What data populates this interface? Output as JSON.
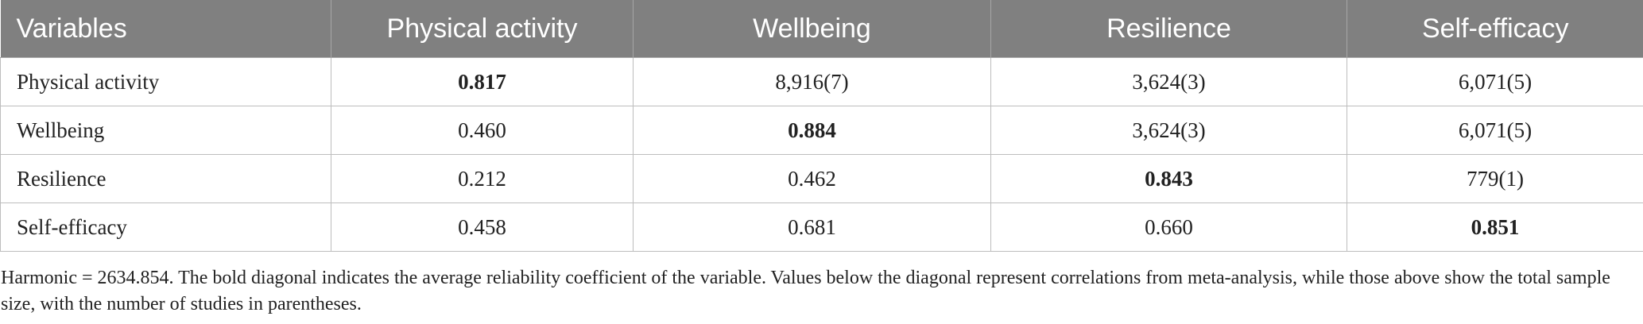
{
  "table": {
    "headers": [
      "Variables",
      "Physical activity",
      "Wellbeing",
      "Resilience",
      "Self-efficacy"
    ],
    "rows": [
      [
        "Physical activity",
        "0.817",
        "8,916(7)",
        "3,624(3)",
        "6,071(5)"
      ],
      [
        "Wellbeing",
        "0.460",
        "0.884",
        "3,624(3)",
        "6,071(5)"
      ],
      [
        "Resilience",
        "0.212",
        "0.462",
        "0.843",
        "779(1)"
      ],
      [
        "Self-efficacy",
        "0.458",
        "0.681",
        "0.660",
        "0.851"
      ]
    ]
  },
  "note": "Harmonic = 2634.854. The bold diagonal indicates the average reliability coefficient of the variable. Values below the diagonal represent correlations from meta-analysis, while those above show the total sample size, with the number of studies in parentheses."
}
